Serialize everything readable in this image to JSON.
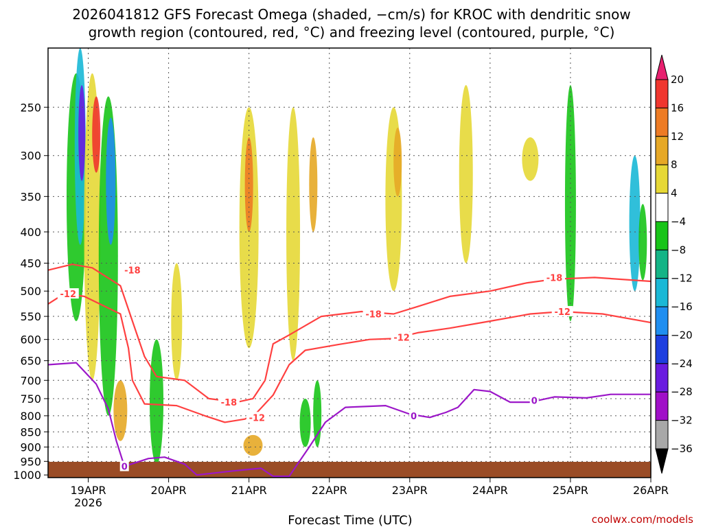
{
  "chart_data": {
    "type": "heatmap",
    "title_line1": "2026041812 GFS Forecast Omega (shaded, −cm/s) for KROC with dendritic snow",
    "title_line2": "growth region (contoured, red, °C) and freezing level (contoured, purple, °C)",
    "xlabel": "Forecast Time (UTC)",
    "ylabel": "",
    "credit": "coolwx.com/models",
    "x_ticks": [
      {
        "t": 0.5,
        "label": "19APR",
        "sub": "2026"
      },
      {
        "t": 1.5,
        "label": "20APR",
        "sub": ""
      },
      {
        "t": 2.5,
        "label": "21APR",
        "sub": ""
      },
      {
        "t": 3.5,
        "label": "22APR",
        "sub": ""
      },
      {
        "t": 4.5,
        "label": "23APR",
        "sub": ""
      },
      {
        "t": 5.5,
        "label": "24APR",
        "sub": ""
      },
      {
        "t": 6.5,
        "label": "25APR",
        "sub": ""
      },
      {
        "t": 7.5,
        "label": "26APR",
        "sub": ""
      }
    ],
    "x_range_days": [
      0,
      7.5
    ],
    "y_ticks": [
      "250",
      "300",
      "350",
      "400",
      "450",
      "500",
      "550",
      "600",
      "650",
      "700",
      "750",
      "800",
      "850",
      "900",
      "950",
      "1000"
    ],
    "y_tick_values": [
      250,
      300,
      350,
      400,
      450,
      500,
      550,
      600,
      650,
      700,
      750,
      800,
      850,
      900,
      950,
      1000
    ],
    "y_range_hpa": [
      200,
      1010
    ],
    "grid": true,
    "colorbar": {
      "labels": [
        "20",
        "16",
        "12",
        "8",
        "4",
        "−4",
        "−8",
        "−12",
        "−16",
        "−20",
        "−24",
        "−28",
        "−32",
        "−36"
      ],
      "colors": [
        "#e8206f",
        "#f0362e",
        "#ed7b24",
        "#e6a826",
        "#e6d836",
        "#ffffff",
        "#18c418",
        "#14b486",
        "#1ab8d6",
        "#1f8ef0",
        "#1e3fe0",
        "#6a1ce0",
        "#a010c8",
        "#a8a8a8",
        "#000000"
      ]
    },
    "contours": [
      {
        "name": "-18",
        "color": "#ff4040",
        "label": "-18",
        "points": [
          [
            0,
            462
          ],
          [
            0.3,
            452
          ],
          [
            0.55,
            458
          ],
          [
            0.9,
            490
          ],
          [
            1.05,
            560
          ],
          [
            1.2,
            640
          ],
          [
            1.35,
            690
          ],
          [
            1.7,
            700
          ],
          [
            2.0,
            750
          ],
          [
            2.35,
            760
          ],
          [
            2.55,
            750
          ],
          [
            2.7,
            700
          ],
          [
            2.8,
            610
          ],
          [
            3.0,
            590
          ],
          [
            3.4,
            550
          ],
          [
            3.9,
            540
          ],
          [
            4.3,
            545
          ],
          [
            4.6,
            530
          ],
          [
            5.0,
            510
          ],
          [
            5.5,
            500
          ],
          [
            5.95,
            485
          ],
          [
            6.3,
            478
          ],
          [
            6.8,
            475
          ],
          [
            7.5,
            482
          ]
        ],
        "label_at": [
          [
            1.05,
            462
          ],
          [
            2.25,
            760
          ],
          [
            4.05,
            545
          ],
          [
            6.3,
            475
          ]
        ]
      },
      {
        "name": "-12",
        "color": "#ff4040",
        "label": "-12",
        "points": [
          [
            0,
            525
          ],
          [
            0.2,
            505
          ],
          [
            0.45,
            510
          ],
          [
            0.9,
            545
          ],
          [
            1.0,
            620
          ],
          [
            1.05,
            700
          ],
          [
            1.2,
            765
          ],
          [
            1.6,
            770
          ],
          [
            1.95,
            800
          ],
          [
            2.2,
            820
          ],
          [
            2.45,
            810
          ],
          [
            2.6,
            790
          ],
          [
            2.8,
            740
          ],
          [
            3.0,
            660
          ],
          [
            3.2,
            625
          ],
          [
            3.6,
            612
          ],
          [
            4.0,
            600
          ],
          [
            4.3,
            598
          ],
          [
            4.6,
            585
          ],
          [
            5.0,
            575
          ],
          [
            5.5,
            560
          ],
          [
            6.0,
            545
          ],
          [
            6.4,
            540
          ],
          [
            6.9,
            545
          ],
          [
            7.5,
            563
          ]
        ],
        "label_at": [
          [
            0.25,
            505
          ],
          [
            2.6,
            805
          ],
          [
            4.4,
            595
          ],
          [
            6.4,
            540
          ]
        ]
      },
      {
        "name": "0",
        "color": "#9b16c8",
        "label": "0",
        "points": [
          [
            0,
            660
          ],
          [
            0.35,
            655
          ],
          [
            0.6,
            710
          ],
          [
            0.75,
            780
          ],
          [
            0.85,
            880
          ],
          [
            0.95,
            968
          ],
          [
            1.25,
            940
          ],
          [
            1.45,
            935
          ],
          [
            1.7,
            960
          ],
          [
            1.85,
            1000
          ],
          [
            2.3,
            985
          ],
          [
            2.65,
            975
          ],
          [
            2.8,
            1005
          ],
          [
            3.0,
            1005
          ],
          [
            3.25,
            900
          ],
          [
            3.45,
            820
          ],
          [
            3.7,
            775
          ],
          [
            4.2,
            770
          ],
          [
            4.5,
            795
          ],
          [
            4.75,
            805
          ],
          [
            4.95,
            790
          ],
          [
            5.1,
            775
          ],
          [
            5.3,
            725
          ],
          [
            5.5,
            730
          ],
          [
            5.75,
            760
          ],
          [
            6.0,
            760
          ],
          [
            6.3,
            745
          ],
          [
            6.7,
            748
          ],
          [
            7.0,
            738
          ],
          [
            7.5,
            738
          ]
        ],
        "label_at": [
          [
            0.95,
            968
          ],
          [
            4.55,
            800
          ],
          [
            6.05,
            755
          ]
        ]
      }
    ]
  }
}
